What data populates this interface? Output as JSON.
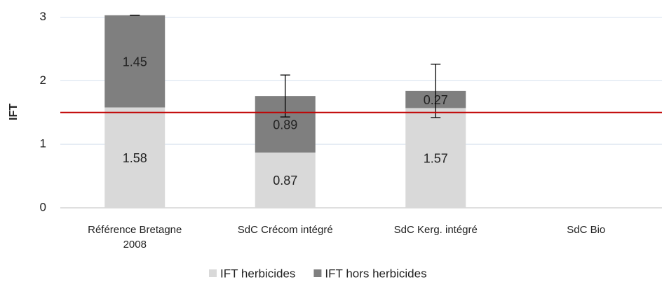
{
  "chart_data": {
    "type": "bar",
    "stacked": true,
    "y_label": "IFT",
    "categories": [
      "Référence Bretagne 2008",
      "SdC Crécom intégré",
      "SdC Kerg. intégré",
      "SdC Bio"
    ],
    "series": [
      {
        "name": "IFT herbicides",
        "color": "#d9d9d9",
        "values": [
          1.58,
          0.87,
          1.57,
          null
        ]
      },
      {
        "name": "IFT hors herbicides",
        "color": "#7f7f7f",
        "values": [
          1.45,
          0.89,
          0.27,
          null
        ],
        "errors": [
          0,
          0.33,
          0.42,
          null
        ]
      }
    ],
    "ylim": [
      0,
      3.05
    ],
    "yticks": [
      0,
      1,
      2,
      3
    ],
    "grid": true,
    "reference_line": 1.5,
    "reference_color": "#c00000"
  }
}
